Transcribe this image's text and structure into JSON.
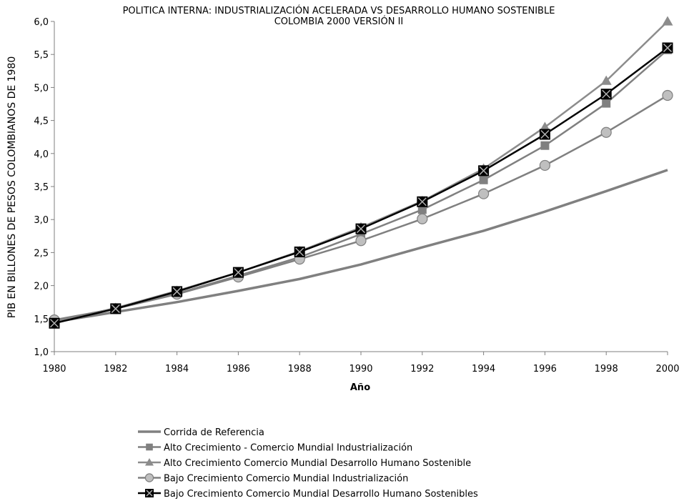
{
  "chart_data": {
    "type": "line",
    "title": "POLITICA INTERNA: INDUSTRIALIZACIÓN ACELERADA VS DESARROLLO HUMANO SOSTENIBLE",
    "subtitle": "COLOMBIA 2000 VERSIÓN II",
    "xlabel": "Año",
    "ylabel": "PIB EN BILLONES DE PESOS COLOMBIANOS DE 1980",
    "xlim": [
      1980,
      2000
    ],
    "ylim": [
      1.0,
      6.0
    ],
    "x_ticks": [
      "1980",
      "1982",
      "1984",
      "1986",
      "1988",
      "1990",
      "1992",
      "1994",
      "1996",
      "1998",
      "2000"
    ],
    "y_ticks": [
      "1,0",
      "1,5",
      "2,0",
      "2,5",
      "3,0",
      "3,5",
      "4,0",
      "4,5",
      "5,0",
      "5,5",
      "6,0"
    ],
    "x": [
      1980,
      1982,
      1984,
      1986,
      1988,
      1990,
      1992,
      1994,
      1996,
      1998,
      2000
    ],
    "series": [
      {
        "name": "Corrida de Referencia",
        "color": "#808080",
        "marker": "none",
        "values": [
          1.45,
          1.6,
          1.75,
          1.92,
          2.1,
          2.32,
          2.58,
          2.83,
          3.12,
          3.43,
          3.75
        ]
      },
      {
        "name": "Alto Crecimiento - Comercio  Mundial Industrialización",
        "color": "#808080",
        "marker": "square",
        "values": [
          1.47,
          1.65,
          1.88,
          2.15,
          2.43,
          2.78,
          3.15,
          3.6,
          4.12,
          4.76,
          5.57
        ]
      },
      {
        "name": "Alto Crecimiento Comercio  Mundial Desarrollo Humano Sostenible",
        "color": "#8c8c8c",
        "marker": "triangle",
        "values": [
          1.45,
          1.66,
          1.92,
          2.2,
          2.52,
          2.88,
          3.28,
          3.77,
          4.4,
          5.1,
          6.0
        ]
      },
      {
        "name": "Bajo Crecimiento Comercio  Mundial  Industrialización",
        "color": "#808080",
        "marker": "circle",
        "values": [
          1.48,
          1.65,
          1.87,
          2.13,
          2.4,
          2.68,
          3.01,
          3.39,
          3.82,
          4.32,
          4.88
        ]
      },
      {
        "name": "Bajo  Crecimiento Comercio Mundial Desarrollo Humano Sostenibles",
        "color": "#000000",
        "marker": "square-x",
        "values": [
          1.43,
          1.65,
          1.91,
          2.2,
          2.51,
          2.86,
          3.27,
          3.74,
          4.29,
          4.9,
          5.6
        ]
      }
    ],
    "grid": false,
    "legend_position": "bottom"
  }
}
